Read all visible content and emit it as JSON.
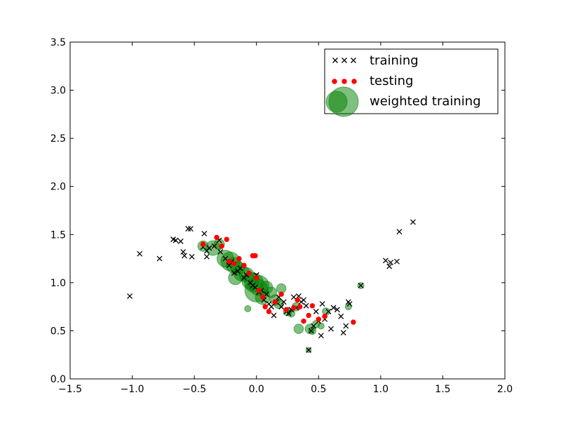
{
  "chart_data": {
    "type": "scatter",
    "xlim": [
      -1.5,
      2.0
    ],
    "ylim": [
      0.0,
      3.5
    ],
    "x_ticks": [
      -1.5,
      -1.0,
      -0.5,
      0.0,
      0.5,
      1.0,
      1.5,
      2.0
    ],
    "x_tick_labels": [
      "−1.5",
      "−1.0",
      "−0.5",
      "0.0",
      "0.5",
      "1.0",
      "1.5",
      "2.0"
    ],
    "y_ticks": [
      0.0,
      0.5,
      1.0,
      1.5,
      2.0,
      2.5,
      3.0,
      3.5
    ],
    "y_tick_labels": [
      "0.0",
      "0.5",
      "1.0",
      "1.5",
      "2.0",
      "2.5",
      "3.0",
      "3.5"
    ],
    "grid": false,
    "legend_position": "top-right",
    "series": [
      {
        "name": "training",
        "marker": "x",
        "color": "#000000",
        "points": [
          [
            -1.02,
            0.86
          ],
          [
            -0.94,
            1.3
          ],
          [
            -0.78,
            1.25
          ],
          [
            -0.67,
            1.45
          ],
          [
            -0.65,
            1.44
          ],
          [
            -0.61,
            1.43
          ],
          [
            -0.59,
            1.32
          ],
          [
            -0.58,
            1.28
          ],
          [
            -0.55,
            1.56
          ],
          [
            -0.53,
            1.56
          ],
          [
            -0.52,
            1.27
          ],
          [
            -0.43,
            1.37
          ],
          [
            -0.42,
            1.51
          ],
          [
            -0.4,
            1.33
          ],
          [
            -0.4,
            1.27
          ],
          [
            -0.38,
            1.36
          ],
          [
            -0.34,
            1.38
          ],
          [
            -0.3,
            1.44
          ],
          [
            -0.29,
            1.32
          ],
          [
            -0.25,
            1.25
          ],
          [
            -0.22,
            1.18
          ],
          [
            -0.2,
            1.22
          ],
          [
            -0.18,
            1.1
          ],
          [
            -0.15,
            1.12
          ],
          [
            -0.13,
            1.15
          ],
          [
            -0.1,
            1.05
          ],
          [
            -0.08,
            1.08
          ],
          [
            -0.05,
            1.0
          ],
          [
            -0.03,
            0.97
          ],
          [
            -0.01,
            0.95
          ],
          [
            0.0,
            1.08
          ],
          [
            0.02,
            0.9
          ],
          [
            0.04,
            0.92
          ],
          [
            0.06,
            0.82
          ],
          [
            0.08,
            0.88
          ],
          [
            0.1,
            0.78
          ],
          [
            0.12,
            0.75
          ],
          [
            0.14,
            0.66
          ],
          [
            0.16,
            0.8
          ],
          [
            0.18,
            0.85
          ],
          [
            0.2,
            0.75
          ],
          [
            0.22,
            0.8
          ],
          [
            0.24,
            0.7
          ],
          [
            0.26,
            0.68
          ],
          [
            0.28,
            0.72
          ],
          [
            0.3,
            0.85
          ],
          [
            0.32,
            0.74
          ],
          [
            0.34,
            0.86
          ],
          [
            0.36,
            0.8
          ],
          [
            0.38,
            0.82
          ],
          [
            0.4,
            0.76
          ],
          [
            0.42,
            0.3
          ],
          [
            0.44,
            0.5
          ],
          [
            0.46,
            0.55
          ],
          [
            0.48,
            0.7
          ],
          [
            0.5,
            0.6
          ],
          [
            0.52,
            0.45
          ],
          [
            0.53,
            0.78
          ],
          [
            0.55,
            0.62
          ],
          [
            0.58,
            0.7
          ],
          [
            0.6,
            0.52
          ],
          [
            0.62,
            0.74
          ],
          [
            0.65,
            0.72
          ],
          [
            0.68,
            0.65
          ],
          [
            0.7,
            0.48
          ],
          [
            0.72,
            0.55
          ],
          [
            0.74,
            0.8
          ],
          [
            0.75,
            0.78
          ],
          [
            0.84,
            0.97
          ],
          [
            1.04,
            1.23
          ],
          [
            1.07,
            1.17
          ],
          [
            1.08,
            1.21
          ],
          [
            1.13,
            1.22
          ],
          [
            1.15,
            1.53
          ],
          [
            1.26,
            1.63
          ]
        ]
      },
      {
        "name": "testing",
        "marker": "o",
        "color": "#ff0000",
        "points": [
          [
            -0.43,
            1.4
          ],
          [
            -0.32,
            1.47
          ],
          [
            -0.28,
            1.38
          ],
          [
            -0.24,
            1.45
          ],
          [
            -0.22,
            1.22
          ],
          [
            -0.18,
            1.2
          ],
          [
            -0.14,
            1.25
          ],
          [
            -0.1,
            1.18
          ],
          [
            -0.06,
            1.1
          ],
          [
            -0.03,
            1.28
          ],
          [
            -0.01,
            1.28
          ],
          [
            0.0,
            1.05
          ],
          [
            0.02,
            0.92
          ],
          [
            0.05,
            0.85
          ],
          [
            0.07,
            0.75
          ],
          [
            0.1,
            0.7
          ],
          [
            0.15,
            0.8
          ],
          [
            0.2,
            0.88
          ],
          [
            0.24,
            0.72
          ],
          [
            0.3,
            0.74
          ],
          [
            0.33,
            0.82
          ],
          [
            0.35,
            0.75
          ],
          [
            0.38,
            0.6
          ],
          [
            0.42,
            0.66
          ],
          [
            0.45,
            0.76
          ],
          [
            0.5,
            0.62
          ],
          [
            0.55,
            0.65
          ],
          [
            0.78,
            0.59
          ]
        ]
      },
      {
        "name": "weighted training",
        "marker": "o",
        "color": "#008000",
        "alpha": 0.5,
        "points": [
          [
            -0.43,
            1.38,
            1.0
          ],
          [
            -0.35,
            1.36,
            1.4
          ],
          [
            -0.3,
            1.4,
            1.0
          ],
          [
            -0.25,
            1.25,
            1.6
          ],
          [
            -0.21,
            1.22,
            1.8
          ],
          [
            -0.18,
            1.18,
            1.5
          ],
          [
            -0.15,
            1.15,
            1.3
          ],
          [
            -0.12,
            1.1,
            1.5
          ],
          [
            -0.17,
            1.05,
            1.3
          ],
          [
            -0.08,
            1.08,
            1.4
          ],
          [
            -0.05,
            1.02,
            1.6
          ],
          [
            -0.02,
            1.0,
            1.8
          ],
          [
            0.0,
            0.92,
            2.2
          ],
          [
            0.02,
            0.97,
            1.9
          ],
          [
            0.05,
            0.85,
            1.4
          ],
          [
            0.08,
            0.95,
            1.2
          ],
          [
            0.12,
            0.9,
            1.0
          ],
          [
            0.15,
            0.82,
            1.0
          ],
          [
            0.18,
            0.78,
            0.9
          ],
          [
            0.2,
            0.94,
            0.9
          ],
          [
            -0.07,
            0.73,
            0.6
          ],
          [
            0.25,
            0.7,
            0.8
          ],
          [
            0.28,
            0.68,
            0.7
          ],
          [
            0.32,
            0.75,
            0.8
          ],
          [
            0.34,
            0.52,
            0.9
          ],
          [
            0.43,
            0.52,
            0.9
          ],
          [
            0.45,
            0.5,
            0.7
          ],
          [
            0.48,
            0.57,
            0.7
          ],
          [
            0.52,
            0.55,
            0.6
          ],
          [
            0.56,
            0.7,
            0.7
          ],
          [
            0.42,
            0.3,
            0.5
          ],
          [
            0.74,
            0.75,
            0.6
          ],
          [
            0.84,
            0.97,
            0.6
          ]
        ]
      }
    ]
  },
  "legend": {
    "entries": [
      {
        "label": "training",
        "color": "#000000"
      },
      {
        "label": "testing",
        "color": "#ff0000"
      },
      {
        "label": "weighted training",
        "color": "#008000"
      }
    ]
  }
}
